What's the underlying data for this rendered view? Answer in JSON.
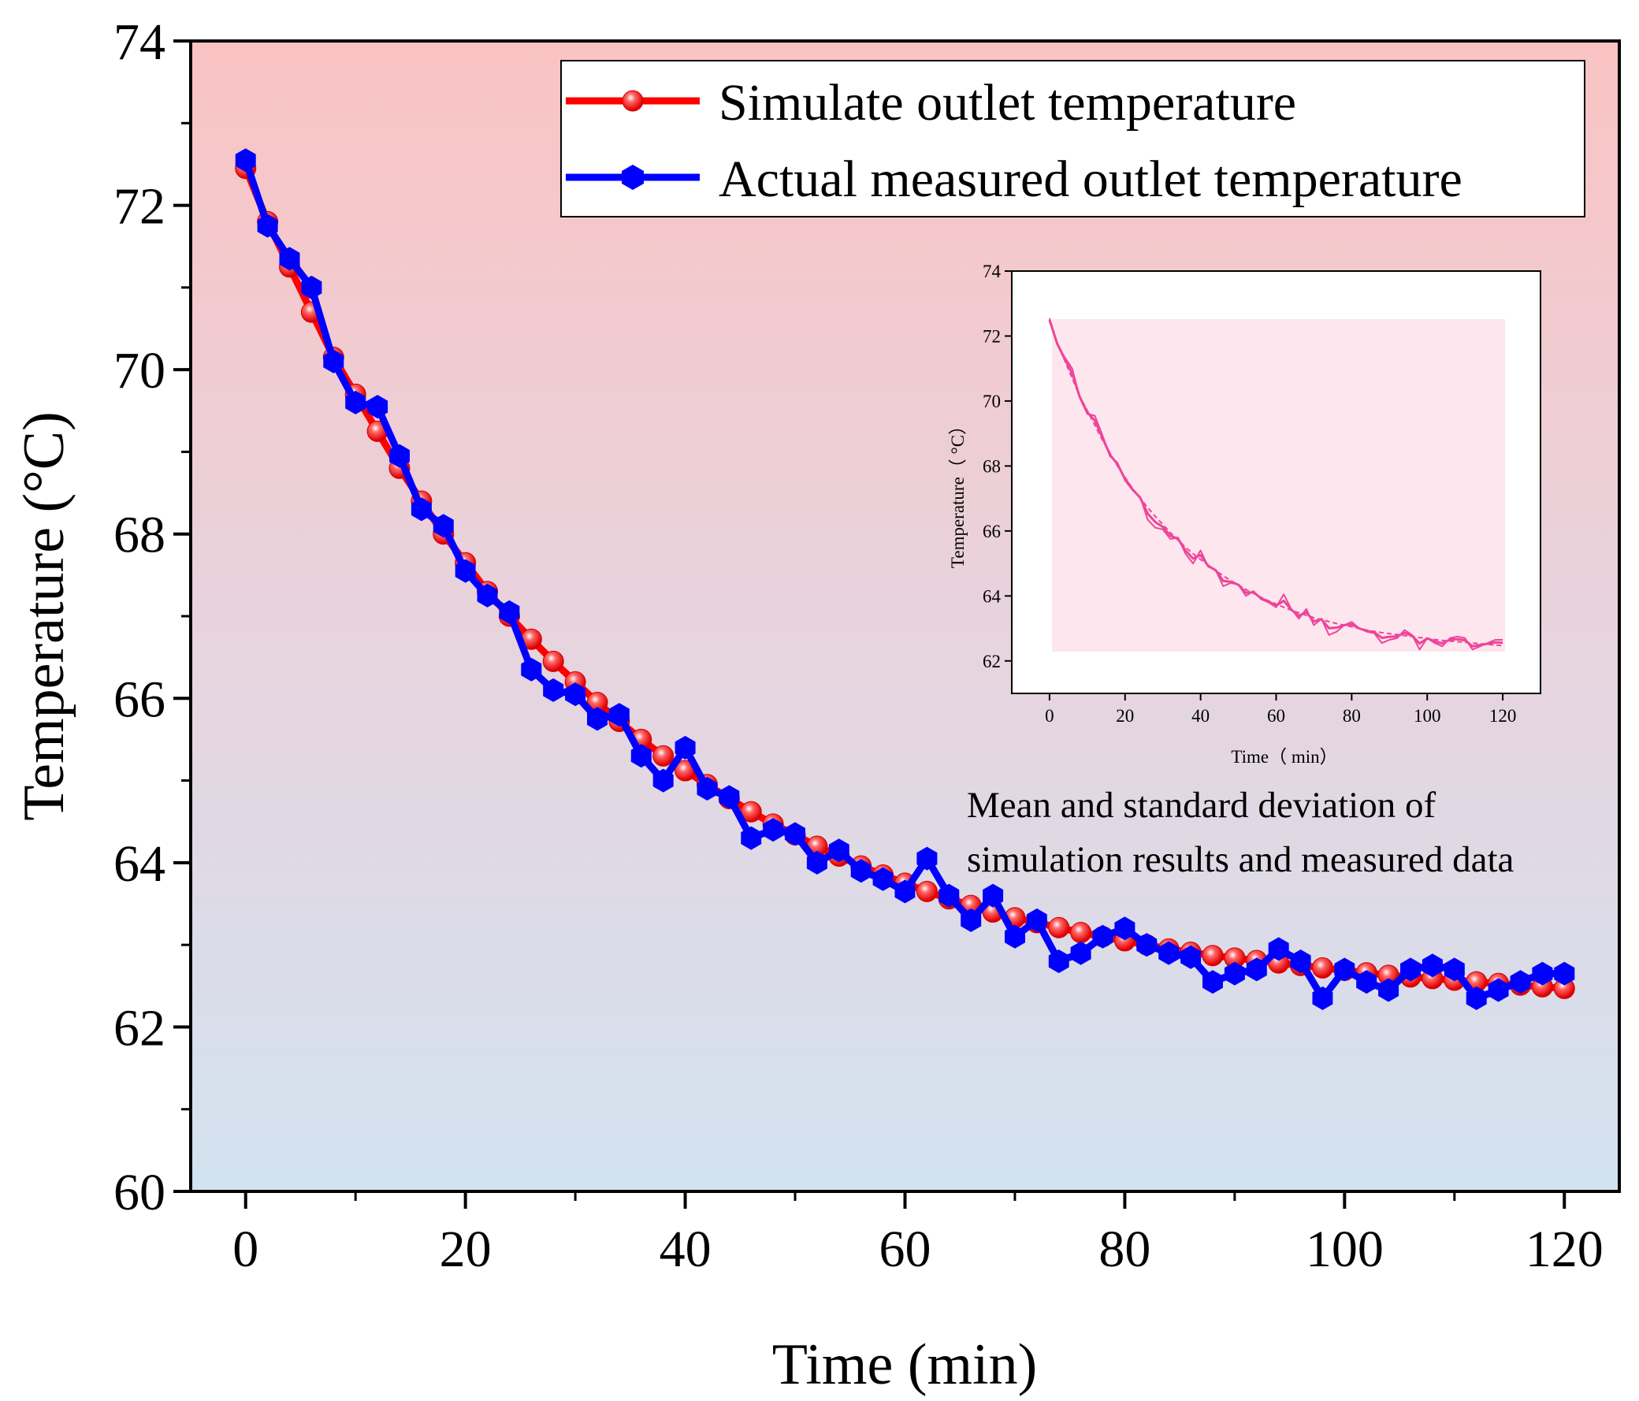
{
  "chart_data": [
    {
      "type": "line",
      "xlabel": "Time (min)",
      "ylabel": "Temperature (°C)",
      "xlim": [
        -5,
        125
      ],
      "ylim": [
        60,
        74
      ],
      "xticks": [
        "0",
        "20",
        "40",
        "60",
        "80",
        "100",
        "120"
      ],
      "yticks": [
        "60",
        "62",
        "64",
        "66",
        "68",
        "70",
        "72",
        "74"
      ],
      "grid": false,
      "legend_position": "top-right",
      "x": [
        0,
        2,
        4,
        6,
        8,
        10,
        12,
        14,
        16,
        18,
        20,
        22,
        24,
        26,
        28,
        30,
        32,
        34,
        36,
        38,
        40,
        42,
        44,
        46,
        48,
        50,
        52,
        54,
        56,
        58,
        60,
        62,
        64,
        66,
        68,
        70,
        72,
        74,
        76,
        78,
        80,
        82,
        84,
        86,
        88,
        90,
        92,
        94,
        96,
        98,
        100,
        102,
        104,
        106,
        108,
        110,
        112,
        114,
        116,
        118,
        120
      ],
      "series": [
        {
          "name": "Simulate outlet temperature",
          "color": "#ff0000",
          "marker": "circle",
          "values": [
            72.45,
            71.8,
            71.25,
            70.7,
            70.15,
            69.7,
            69.25,
            68.8,
            68.4,
            68.0,
            67.65,
            67.3,
            67.0,
            66.72,
            66.45,
            66.2,
            65.95,
            65.72,
            65.5,
            65.3,
            65.12,
            64.95,
            64.78,
            64.62,
            64.47,
            64.34,
            64.2,
            64.08,
            63.96,
            63.85,
            63.75,
            63.65,
            63.56,
            63.48,
            63.4,
            63.33,
            63.27,
            63.21,
            63.15,
            63.1,
            63.05,
            63.0,
            62.95,
            62.91,
            62.87,
            62.84,
            62.81,
            62.78,
            62.75,
            62.72,
            62.69,
            62.66,
            62.63,
            62.61,
            62.59,
            62.57,
            62.55,
            62.53,
            62.51,
            62.49,
            62.47
          ]
        },
        {
          "name": "Actual measured outlet temperature",
          "color": "#0000ff",
          "marker": "hexagon",
          "values": [
            72.55,
            71.75,
            71.35,
            71.0,
            70.1,
            69.6,
            69.55,
            68.95,
            68.3,
            68.1,
            67.55,
            67.25,
            67.05,
            66.35,
            66.1,
            66.05,
            65.75,
            65.8,
            65.3,
            65.0,
            65.4,
            64.9,
            64.8,
            64.3,
            64.4,
            64.35,
            64.0,
            64.15,
            63.9,
            63.8,
            63.65,
            64.05,
            63.6,
            63.3,
            63.6,
            63.1,
            63.3,
            62.8,
            62.9,
            63.1,
            63.2,
            63.0,
            62.9,
            62.85,
            62.55,
            62.65,
            62.7,
            62.95,
            62.8,
            62.35,
            62.7,
            62.55,
            62.45,
            62.7,
            62.75,
            62.7,
            62.35,
            62.45,
            62.55,
            62.65,
            62.65
          ]
        }
      ]
    },
    {
      "type": "line",
      "xlabel": "Time（  min）",
      "ylabel": "Temperature（  °C）",
      "xlim": [
        -10,
        130
      ],
      "ylim": [
        61,
        74
      ],
      "xticks": [
        "0",
        "20",
        "40",
        "60",
        "80",
        "100",
        "120"
      ],
      "yticks": [
        "62",
        "64",
        "66",
        "68",
        "70",
        "72",
        "74"
      ],
      "color": "#ee4499",
      "annotation": "Mean and standard deviation of simulation results and measured data"
    }
  ],
  "annotation_lines": [
    "Mean and standard deviation of",
    "simulation results and measured data"
  ]
}
